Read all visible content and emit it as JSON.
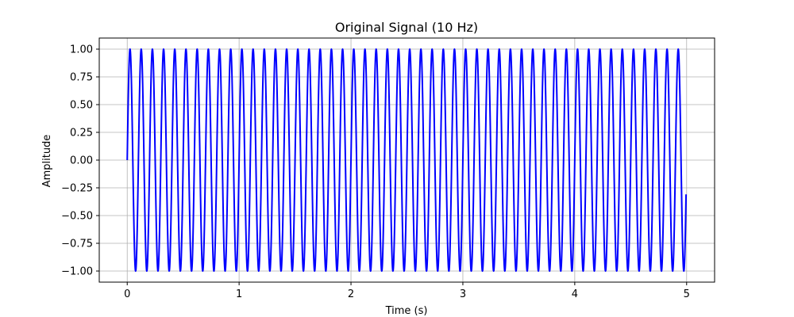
{
  "chart_data": {
    "type": "line",
    "title": "Original Signal (10 Hz)",
    "xlabel": "Time (s)",
    "ylabel": "Amplitude",
    "frequency_hz": 10,
    "amplitude": 1.0,
    "x_range": [
      0,
      4.995
    ],
    "xlim": [
      -0.25,
      5.25
    ],
    "ylim": [
      -1.1,
      1.1
    ],
    "xticks": [
      0,
      1,
      2,
      3,
      4,
      5
    ],
    "xtick_labels": [
      "0",
      "1",
      "2",
      "3",
      "4",
      "5"
    ],
    "yticks": [
      -1.0,
      -0.75,
      -0.5,
      -0.25,
      0.0,
      0.25,
      0.5,
      0.75,
      1.0
    ],
    "ytick_labels": [
      "−1.00",
      "−0.75",
      "−0.50",
      "−0.25",
      "0.00",
      "0.25",
      "0.50",
      "0.75",
      "1.00"
    ],
    "grid": true,
    "series": [
      {
        "color": "#0000ff",
        "function": "sin(2*pi*10*t)"
      }
    ]
  }
}
